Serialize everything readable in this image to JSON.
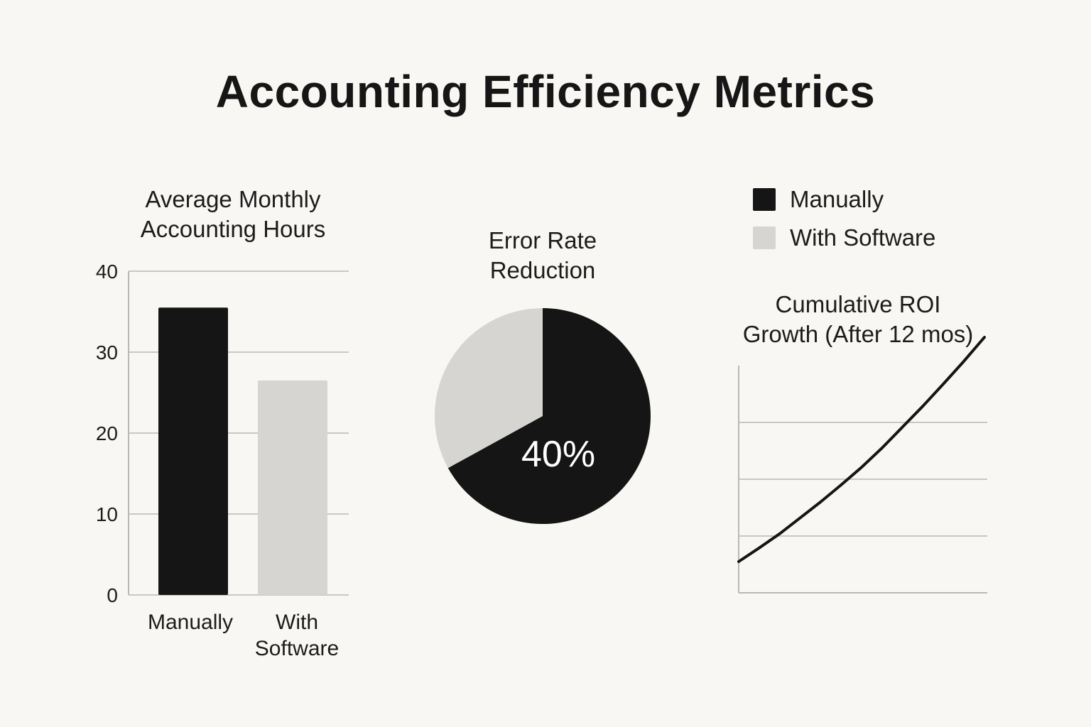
{
  "title": "Accounting Efficiency Metrics",
  "colors": {
    "background": "#f8f7f3",
    "manual": "#151515",
    "software": "#d6d5d1",
    "grid": "#c9c8c4",
    "axis": "#b9b8b4",
    "line": "#151515"
  },
  "legend": [
    {
      "label": "Manually",
      "color": "#151515"
    },
    {
      "label": "With Software",
      "color": "#d6d5d1"
    }
  ],
  "chart_data": [
    {
      "type": "bar",
      "title": "Average Monthly\nAccounting Hours",
      "categories": [
        "Manually",
        "With\nSoftware"
      ],
      "values": [
        35.5,
        26.5
      ],
      "colors": [
        "#151515",
        "#d6d5d1"
      ],
      "ylim": [
        0,
        40
      ],
      "yticks": [
        "0",
        "10",
        "20",
        "30",
        "40"
      ],
      "xlabel": "",
      "ylabel": "",
      "grid": true
    },
    {
      "type": "pie",
      "title": "Error Rate\nReduction",
      "slices": [
        {
          "value": 67,
          "color": "#151515"
        },
        {
          "value": 33,
          "color": "#d6d5d1"
        }
      ],
      "label": "40%"
    },
    {
      "type": "line",
      "title": "Cumulative ROI\nGrowth (After 12 mos)",
      "x": [
        0,
        1,
        2,
        3,
        4,
        5,
        6,
        7,
        8,
        9,
        10,
        11,
        12
      ],
      "y": [
        0.55,
        0.79,
        1.04,
        1.32,
        1.6,
        1.9,
        2.21,
        2.55,
        2.92,
        3.29,
        3.68,
        4.08,
        4.5
      ],
      "ylim": [
        0,
        4
      ],
      "grid": true,
      "xlabel": "",
      "ylabel": ""
    }
  ]
}
